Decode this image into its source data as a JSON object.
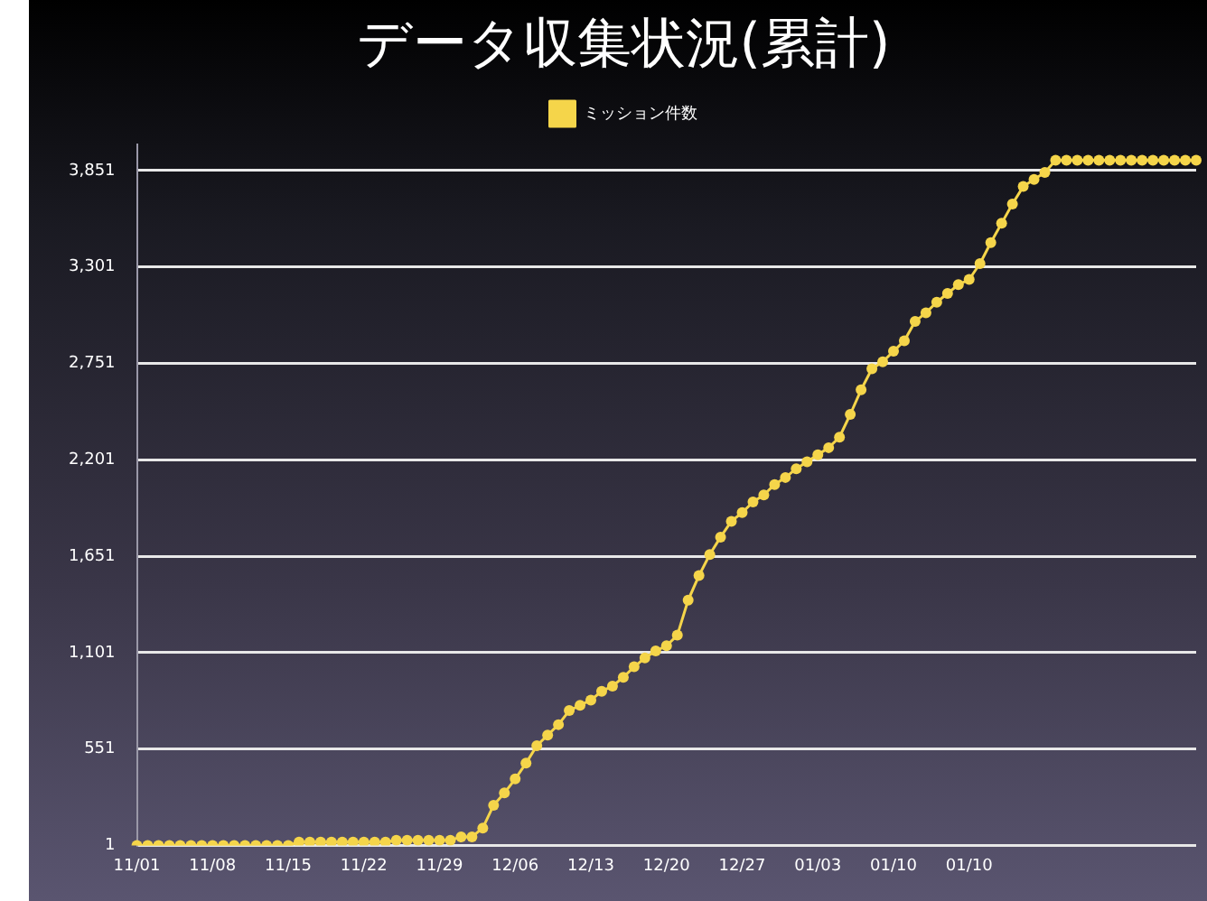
{
  "chart_data": {
    "type": "line",
    "title": "データ収集状況(累計)",
    "categories": [
      "11/01",
      null,
      null,
      null,
      null,
      null,
      null,
      "11/08",
      null,
      null,
      null,
      null,
      null,
      null,
      "11/15",
      null,
      null,
      null,
      null,
      null,
      null,
      "11/22",
      null,
      null,
      null,
      null,
      null,
      null,
      "11/29",
      null,
      null,
      null,
      null,
      null,
      null,
      "12/06",
      null,
      null,
      null,
      null,
      null,
      null,
      "12/13",
      null,
      null,
      null,
      null,
      null,
      null,
      "12/20",
      null,
      null,
      null,
      null,
      null,
      null,
      "12/27",
      null,
      null,
      null,
      null,
      null,
      null,
      "01/03",
      null,
      null,
      null,
      null,
      null,
      null,
      "01/10",
      null,
      null,
      null,
      null,
      null,
      null,
      "01/10",
      null,
      null,
      null,
      null,
      null,
      null,
      null,
      null,
      null,
      null,
      null,
      null,
      null,
      null,
      null,
      null,
      null,
      null,
      null,
      null,
      null
    ],
    "series": [
      {
        "name": "ミッション件数",
        "color": "#f5d54a",
        "values": [
          1,
          1,
          1,
          1,
          1,
          1,
          1,
          1,
          1,
          1,
          1,
          1,
          1,
          1,
          1,
          20,
          20,
          20,
          20,
          20,
          20,
          20,
          20,
          20,
          30,
          30,
          30,
          30,
          30,
          30,
          50,
          50,
          100,
          230,
          300,
          380,
          470,
          570,
          630,
          690,
          770,
          800,
          830,
          880,
          910,
          960,
          1020,
          1070,
          1110,
          1140,
          1200,
          1400,
          1540,
          1660,
          1760,
          1850,
          1900,
          1960,
          2000,
          2060,
          2100,
          2150,
          2190,
          2230,
          2270,
          2330,
          2460,
          2600,
          2720,
          2760,
          2820,
          2880,
          2990,
          3040,
          3100,
          3150,
          3200,
          3230,
          3320,
          3440,
          3550,
          3660,
          3760,
          3800,
          3840,
          3910,
          3910,
          3910,
          3910,
          3910,
          3910,
          3910,
          3910,
          3910,
          3910,
          3910,
          3910,
          3910,
          3910
        ]
      }
    ],
    "ylim": [
      1,
      4000
    ],
    "yticks": [
      {
        "value": 1,
        "label": "1"
      },
      {
        "value": 551,
        "label": "551"
      },
      {
        "value": 1101,
        "label": "1,101"
      },
      {
        "value": 1651,
        "label": "1,651"
      },
      {
        "value": 2201,
        "label": "2,201"
      },
      {
        "value": 2751,
        "label": "2,751"
      },
      {
        "value": 3301,
        "label": "3,301"
      },
      {
        "value": 3851,
        "label": "3,851"
      }
    ],
    "grid": "y",
    "legend": "top",
    "marker": "circle",
    "line_style": "solid"
  }
}
